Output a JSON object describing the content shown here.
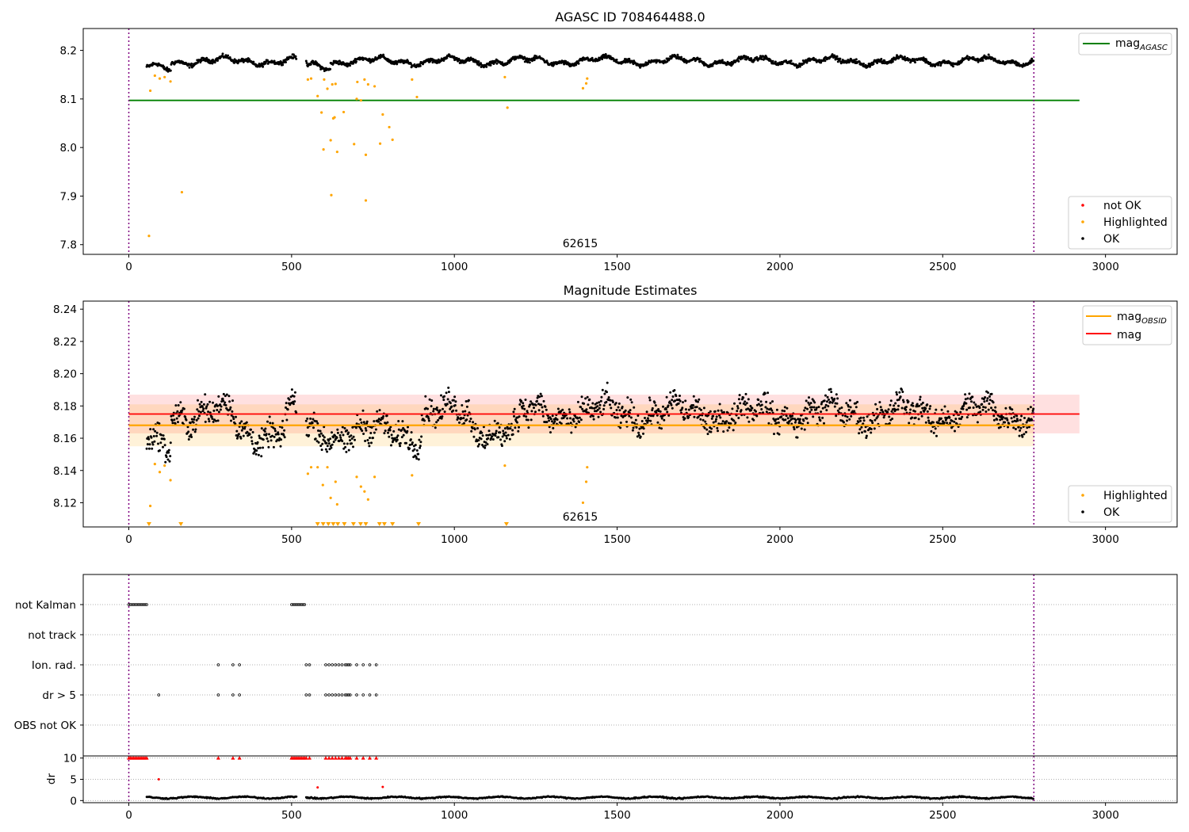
{
  "chart_data": [
    {
      "type": "scatter",
      "title": "AGASC ID 708464488.0",
      "xlim": [
        -140,
        3220
      ],
      "ylim": [
        7.78,
        8.245
      ],
      "x_ticks": [
        0,
        500,
        1000,
        1500,
        2000,
        2500,
        3000
      ],
      "y_ticks": [
        7.8,
        7.9,
        8.0,
        8.1,
        8.2
      ],
      "y_tick_labels": [
        "7.8",
        "7.9",
        "8.0",
        "8.1",
        "8.2"
      ],
      "obsid_label": "62615",
      "obsid_boundaries": [
        0,
        2780
      ],
      "reference_lines": [
        {
          "name": "mag_AGASC",
          "legend_main": "mag",
          "legend_sub": "AGASC",
          "y": 8.097,
          "x_range": [
            0,
            2920
          ],
          "color": "#008000"
        }
      ],
      "series": [
        {
          "name": "not OK",
          "color": "#ff0000"
        },
        {
          "name": "Highlighted",
          "color": "#ffa500",
          "points": [
            [
              62,
              7.818
            ],
            [
              163,
              7.908
            ],
            [
              622,
              7.902
            ],
            [
              728,
              7.891
            ],
            [
              592,
              8.072
            ],
            [
              598,
              7.996
            ],
            [
              620,
              8.015
            ],
            [
              640,
              7.991
            ],
            [
              660,
              8.073
            ],
            [
              692,
              8.007
            ],
            [
              728,
              7.985
            ],
            [
              772,
              8.008
            ],
            [
              780,
              8.068
            ],
            [
              800,
              8.042
            ],
            [
              810,
              8.016
            ],
            [
              700,
              8.1
            ],
            [
              713,
              8.097
            ],
            [
              580,
              8.106
            ],
            [
              610,
              8.121
            ],
            [
              625,
              8.13
            ],
            [
              635,
              8.131
            ],
            [
              632,
              8.062
            ],
            [
              628,
              8.06
            ],
            [
              702,
              8.135
            ],
            [
              724,
              8.14
            ],
            [
              735,
              8.13
            ],
            [
              755,
              8.126
            ],
            [
              66,
              8.117
            ],
            [
              80,
              8.148
            ],
            [
              95,
              8.142
            ],
            [
              110,
              8.145
            ],
            [
              128,
              8.136
            ],
            [
              550,
              8.14
            ],
            [
              560,
              8.142
            ],
            [
              600,
              8.14
            ],
            [
              885,
              8.104
            ],
            [
              870,
              8.14
            ],
            [
              1155,
              8.145
            ],
            [
              1163,
              8.082
            ],
            [
              1395,
              8.122
            ],
            [
              1405,
              8.132
            ],
            [
              1408,
              8.142
            ]
          ]
        },
        {
          "name": "OK",
          "color": "#000000"
        }
      ],
      "ok_band": {
        "x_segments": [
          [
            55,
            515
          ],
          [
            545,
            2780
          ]
        ],
        "base": 8.178,
        "spread": 0.012
      },
      "legends": [
        {
          "position": "upper right",
          "entries": [
            "mag_AGASC"
          ]
        },
        {
          "position": "lower right",
          "entries": [
            "not OK",
            "Highlighted",
            "OK"
          ]
        }
      ]
    },
    {
      "type": "scatter",
      "title": "Magnitude Estimates",
      "xlim": [
        -140,
        3220
      ],
      "ylim": [
        8.105,
        8.245
      ],
      "x_ticks": [
        0,
        500,
        1000,
        1500,
        2000,
        2500,
        3000
      ],
      "y_ticks": [
        8.12,
        8.14,
        8.16,
        8.18,
        8.2,
        8.22,
        8.24
      ],
      "y_tick_labels": [
        "8.12",
        "8.14",
        "8.16",
        "8.18",
        "8.20",
        "8.22",
        "8.24"
      ],
      "obsid_label": "62615",
      "obsid_boundaries": [
        0,
        2780
      ],
      "reference_lines": [
        {
          "name": "mag_OBSID",
          "legend_main": "mag",
          "legend_sub": "OBSID",
          "y": 8.168,
          "x_range": [
            0,
            2780
          ],
          "color": "#ffa500",
          "band": [
            8.155,
            8.181
          ]
        },
        {
          "name": "mag",
          "legend_main": "mag",
          "legend_sub": "",
          "y": 8.175,
          "x_range": [
            0,
            2920
          ],
          "color": "#ff0000",
          "band": [
            8.163,
            8.187
          ]
        }
      ],
      "series": [
        {
          "name": "Highlighted",
          "color": "#ffa500",
          "points": [
            [
              66,
              8.118
            ],
            [
              80,
              8.144
            ],
            [
              95,
              8.139
            ],
            [
              110,
              8.143
            ],
            [
              128,
              8.134
            ],
            [
              550,
              8.138
            ],
            [
              560,
              8.142
            ],
            [
              580,
              8.142
            ],
            [
              596,
              8.131
            ],
            [
              610,
              8.142
            ],
            [
              620,
              8.123
            ],
            [
              635,
              8.133
            ],
            [
              640,
              8.119
            ],
            [
              700,
              8.136
            ],
            [
              713,
              8.13
            ],
            [
              724,
              8.127
            ],
            [
              735,
              8.122
            ],
            [
              755,
              8.136
            ],
            [
              870,
              8.137
            ],
            [
              1155,
              8.143
            ],
            [
              1395,
              8.12
            ],
            [
              1405,
              8.133
            ],
            [
              1408,
              8.142
            ]
          ]
        },
        {
          "name": "OK",
          "color": "#000000"
        }
      ],
      "clipped_markers_x": [
        62,
        160,
        580,
        597,
        613,
        628,
        642,
        662,
        690,
        712,
        728,
        770,
        785,
        810,
        890,
        1160
      ],
      "legends": [
        {
          "position": "upper right",
          "entries": [
            "mag_OBSID",
            "mag"
          ]
        },
        {
          "position": "lower right",
          "entries": [
            "Highlighted",
            "OK"
          ]
        }
      ]
    },
    {
      "type": "scatter",
      "title": "",
      "xlim": [
        -140,
        3220
      ],
      "categories": [
        "not Kalman",
        "not track",
        "Ion. rad.",
        "dr > 5",
        "OBS not OK"
      ],
      "flag_points": {
        "not Kalman": [
          0,
          5,
          10,
          15,
          20,
          25,
          30,
          35,
          40,
          45,
          50,
          55,
          500,
          505,
          510,
          515,
          520,
          525,
          530,
          535,
          540
        ],
        "not track": [],
        "Ion. rad.": [
          275,
          320,
          340,
          545,
          555,
          605,
          615,
          625,
          635,
          645,
          655,
          665,
          670,
          675,
          680,
          700,
          720,
          740,
          760
        ],
        "dr > 5": [
          92,
          275,
          320,
          340,
          545,
          555,
          605,
          615,
          625,
          635,
          645,
          655,
          665,
          670,
          675,
          680,
          700,
          720,
          740,
          760
        ],
        "OBS not OK": []
      },
      "obsid_boundaries": [
        0,
        2780
      ]
    },
    {
      "type": "scatter",
      "title": "",
      "xlim": [
        -140,
        3220
      ],
      "ylim": [
        -0.5,
        10.5
      ],
      "ylabel": "dr",
      "x_ticks": [
        0,
        500,
        1000,
        1500,
        2000,
        2500,
        3000
      ],
      "y_ticks": [
        0,
        5,
        10
      ],
      "y_tick_labels": [
        "0",
        "5",
        "10"
      ],
      "clip_value": 10,
      "red_clipped_x": [
        0,
        5,
        10,
        15,
        20,
        25,
        30,
        35,
        40,
        45,
        50,
        55,
        275,
        320,
        340,
        500,
        505,
        510,
        515,
        520,
        525,
        530,
        535,
        540,
        545,
        555,
        605,
        615,
        625,
        635,
        645,
        655,
        665,
        670,
        675,
        680,
        700,
        720,
        740,
        760
      ],
      "red_points": [
        [
          92,
          5.0
        ],
        [
          580,
          3.1
        ],
        [
          780,
          3.2
        ]
      ],
      "ok_band": {
        "x_segments": [
          [
            55,
            515
          ],
          [
            545,
            2780
          ]
        ],
        "base": 0.7,
        "spread": 0.35
      },
      "obsid_boundaries": [
        0,
        2780
      ]
    }
  ]
}
